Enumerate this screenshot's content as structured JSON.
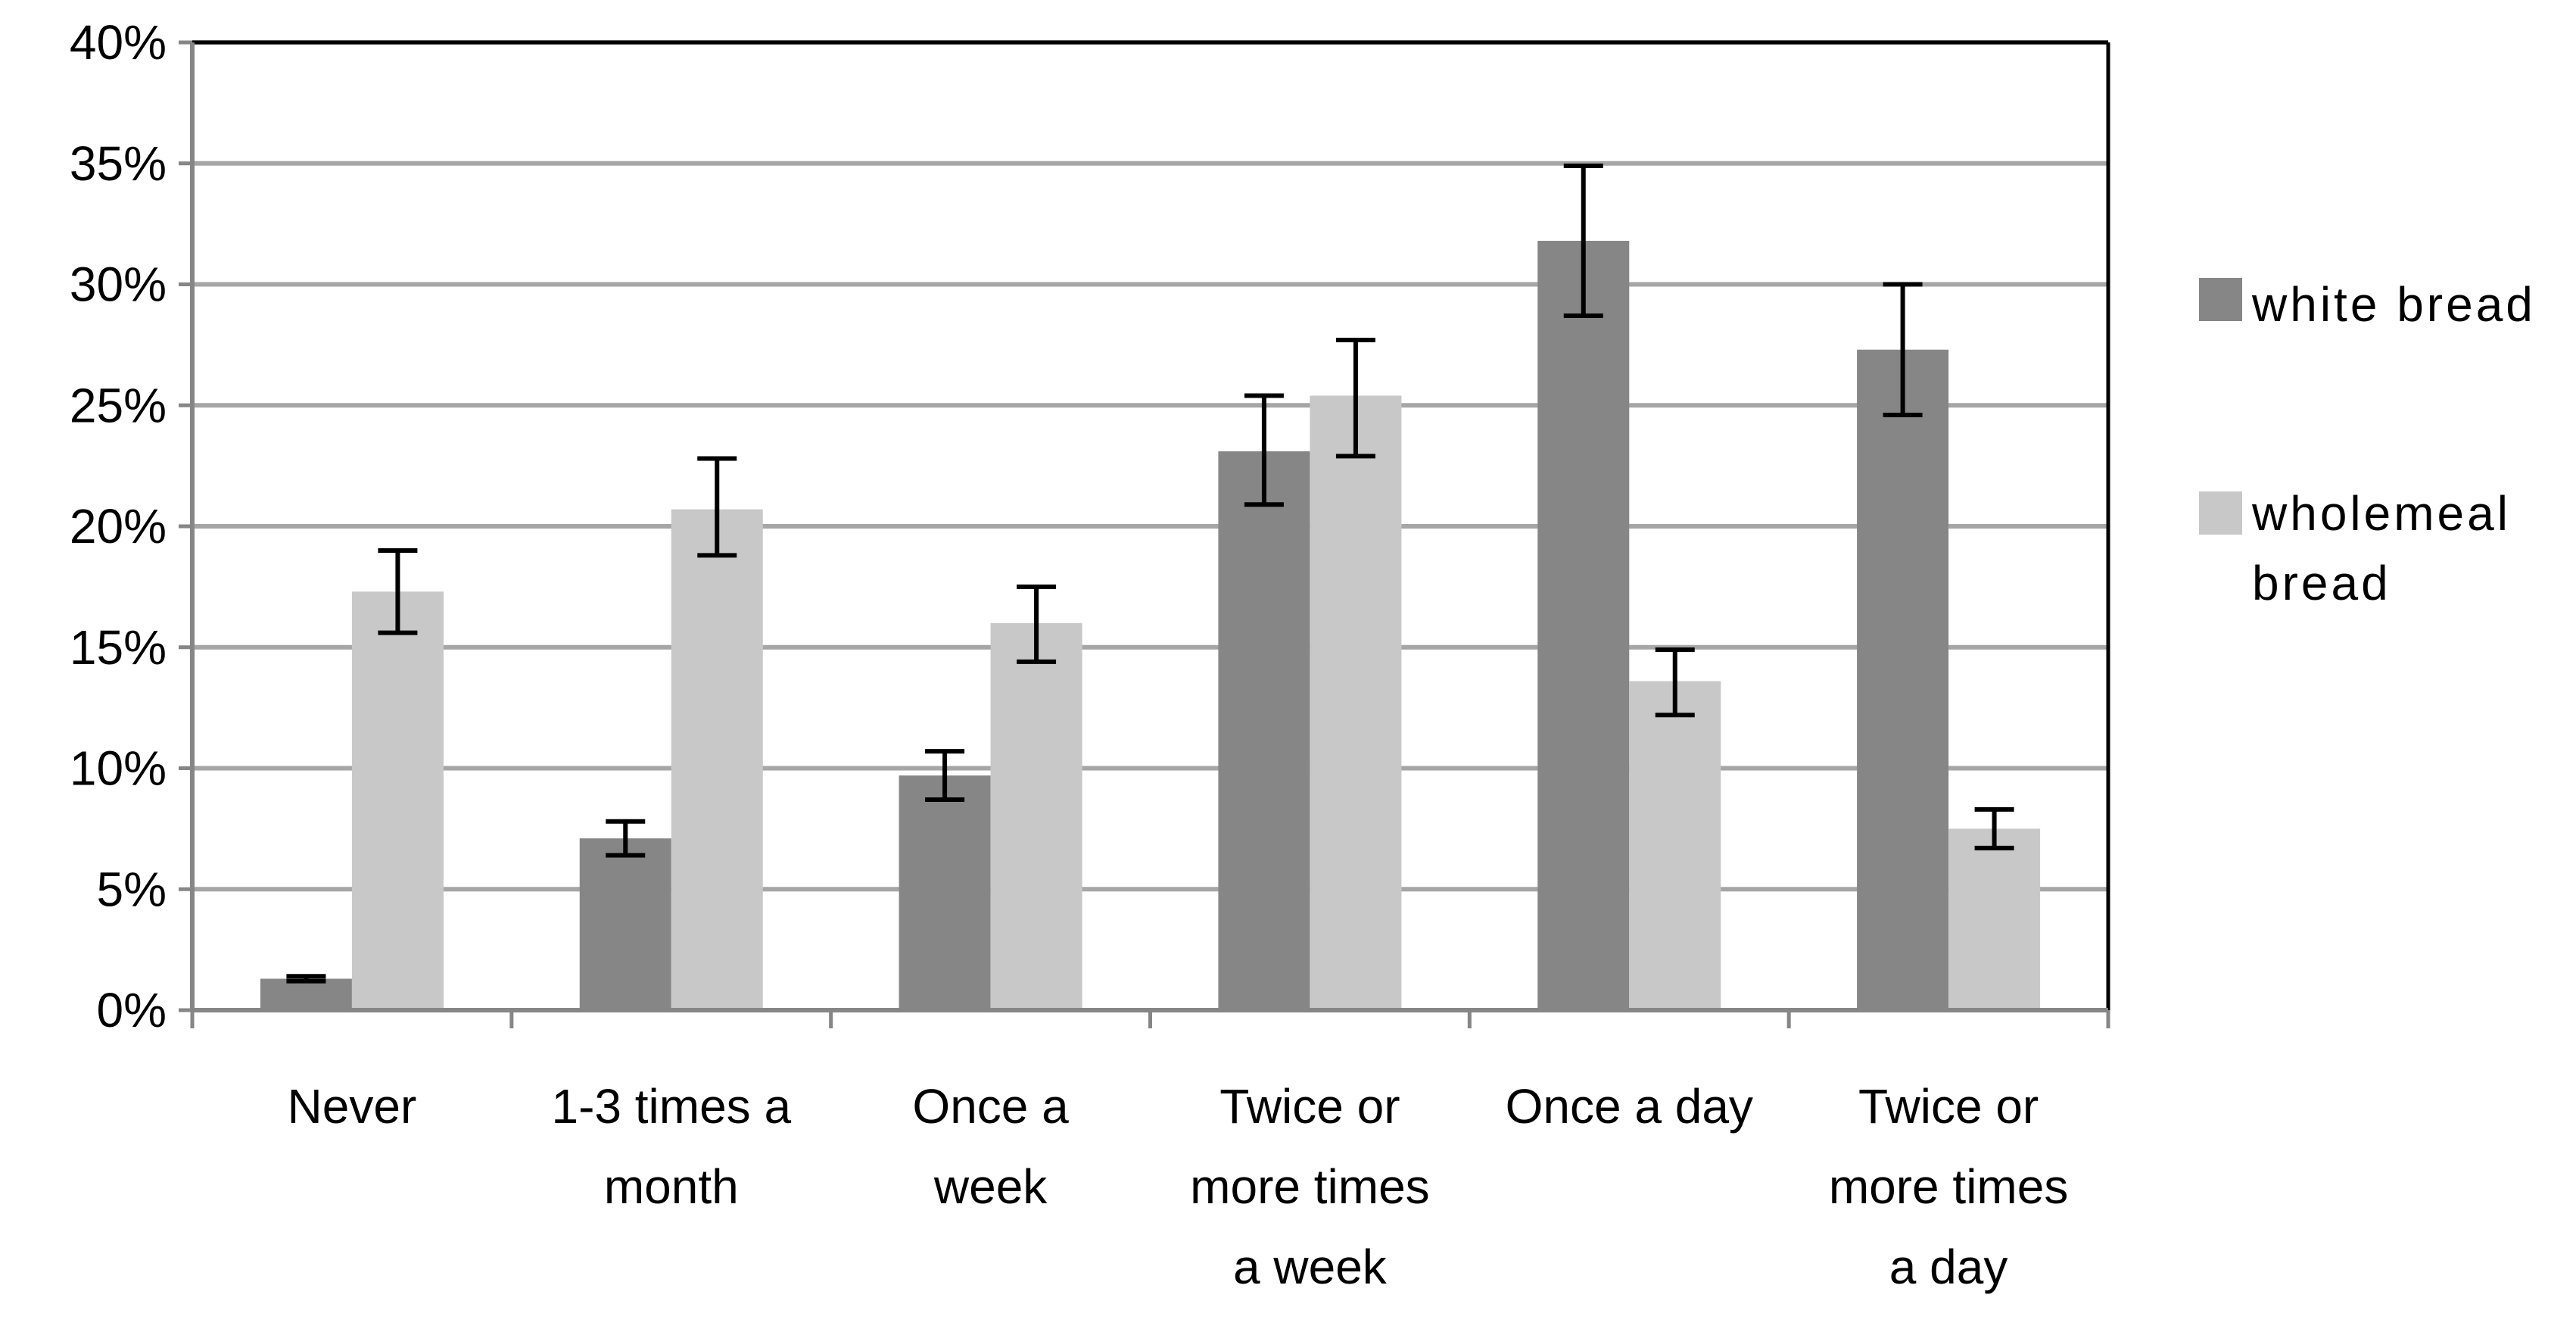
{
  "chart_data": {
    "type": "bar",
    "title": "",
    "xlabel": "",
    "ylabel": "",
    "ylim": [
      0,
      40
    ],
    "yticks": [
      "0%",
      "5%",
      "10%",
      "15%",
      "20%",
      "25%",
      "30%",
      "35%",
      "40%"
    ],
    "grid": true,
    "legend_position": "right",
    "categories": [
      [
        "Never"
      ],
      [
        "1-3 times a",
        "month"
      ],
      [
        "Once a",
        "week"
      ],
      [
        "Twice or",
        "more times",
        "a week"
      ],
      [
        "Once a day"
      ],
      [
        "Twice or",
        "more times",
        "a day"
      ]
    ],
    "series": [
      {
        "name": "white bread",
        "legend_lines": [
          "white bread"
        ],
        "color": "#868686",
        "values": [
          1.3,
          7.1,
          9.7,
          23.1,
          31.8,
          27.3
        ],
        "error_low": [
          1.2,
          6.4,
          8.7,
          20.9,
          28.7,
          24.6
        ],
        "error_high": [
          1.4,
          7.8,
          10.7,
          25.4,
          34.9,
          30.0
        ]
      },
      {
        "name": "wholemeal bread",
        "legend_lines": [
          "wholemeal",
          "bread"
        ],
        "color": "#c8c8c8",
        "values": [
          17.3,
          20.7,
          16.0,
          25.4,
          13.6,
          7.5
        ],
        "error_low": [
          15.6,
          18.8,
          14.4,
          22.9,
          12.2,
          6.7
        ],
        "error_high": [
          19.0,
          22.8,
          17.5,
          27.7,
          14.9,
          8.3
        ]
      }
    ]
  }
}
